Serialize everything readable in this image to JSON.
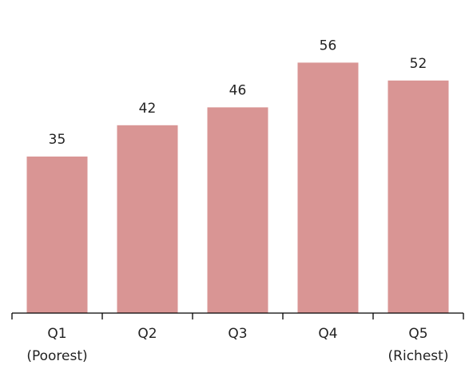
{
  "chart_data": {
    "type": "bar",
    "categories": [
      [
        "Q1",
        "(Poorest)"
      ],
      [
        "Q2"
      ],
      [
        "Q3"
      ],
      [
        "Q4"
      ],
      [
        "Q5",
        "(Richest)"
      ]
    ],
    "values": [
      35,
      42,
      46,
      56,
      52
    ],
    "data_labels": [
      "35",
      "42",
      "46",
      "56",
      "52"
    ],
    "ylim": [
      0,
      61.6
    ],
    "title": "",
    "xlabel": "",
    "ylabel": "",
    "grid": false,
    "legend": "none",
    "bar_color": "#d99594",
    "axis_color": "#000000"
  }
}
